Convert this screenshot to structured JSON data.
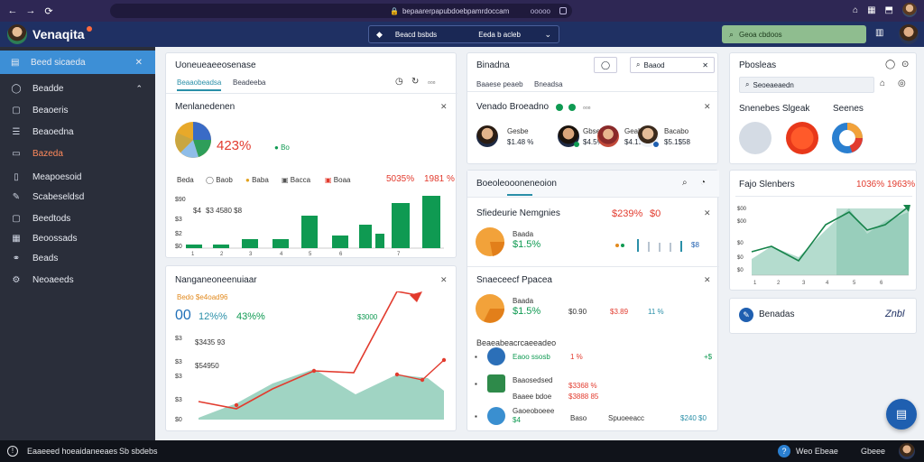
{
  "browser": {
    "nav_icons": [
      "←",
      "→",
      "⟳"
    ],
    "url_text": "bepaarerpapubdoebpamrdoccam",
    "url_extra": "ooooo",
    "right_icons": [
      "⌂",
      "▦",
      "⬒"
    ]
  },
  "app": {
    "brand": "Venaqita",
    "center_select": {
      "label1": "Beacd bsbds",
      "label2": "Eeda b acleb"
    },
    "search_text": "Geoa cbdoos",
    "colors": {
      "appbar": "#1f3063",
      "sidebar": "#2a2e3a",
      "accent": "#3d8fd6",
      "green": "#0f9a52",
      "red": "#e23b2e",
      "teal": "#8fcdb8"
    }
  },
  "sidebar": {
    "active": {
      "label": "Beed sicaeda",
      "icon": "grid-icon"
    },
    "items": [
      {
        "label": "Beadde",
        "icon": "circle-icon"
      },
      {
        "label": "Beaoeris",
        "icon": "doc-icon"
      },
      {
        "label": "Beaoedna",
        "icon": "list-icon"
      },
      {
        "label": "Bazeda",
        "icon": "alert-icon"
      },
      {
        "label": "Meapoesoid",
        "icon": "doc-icon"
      },
      {
        "label": "Scabeseldsd",
        "icon": "pen-icon"
      },
      {
        "label": "Beedtods",
        "icon": "box-icon"
      },
      {
        "label": "Beoossads",
        "icon": "calendar-icon"
      },
      {
        "label": "Beads",
        "icon": "link-icon"
      },
      {
        "label": "Neoaeeds",
        "icon": "settings-icon"
      }
    ]
  },
  "card_overview": {
    "title": "Uoneueaeeosenase",
    "tabs": [
      "Beaaobeadsa",
      "Beadeeba"
    ],
    "sub_title": "Menlanedenen",
    "pie_value": "423%",
    "pie_legend": "Bo",
    "legend": [
      "Beda",
      "Baob",
      "Baba",
      "Bacca",
      "Boaa"
    ],
    "highlight_a": "5035%",
    "highlight_b": "1981 %",
    "bar_labels": [
      "$4",
      "$3 4580 $8"
    ],
    "y_ticks": [
      "$90",
      "$3",
      "$2",
      "$0"
    ],
    "x_ticks": [
      "1",
      "2",
      "3",
      "4",
      "5",
      "6",
      "7"
    ]
  },
  "card_trend": {
    "title": "Nanganeoneenuiaar",
    "subline": "Bedo $e4oad96",
    "val1": "00",
    "val2": "12%%",
    "val3": "43%%",
    "val4": "$3000",
    "label1": "$3435 93",
    "label2": "$54950",
    "y_ticks": [
      "$3",
      "$3",
      "$3",
      "$3",
      "$0"
    ]
  },
  "card_people": {
    "title": "Binadna",
    "tabs": [
      "Baaese peaeb",
      "Bneadsa"
    ],
    "search_text": "Baaod",
    "sub_title": "Venado Broeadno",
    "people": [
      {
        "name": "Gesbe",
        "value": "$1.48 %"
      },
      {
        "name": "Gbseb",
        "value": "$4.5%"
      },
      {
        "name": "Geabsoe",
        "value": "$4.1998%"
      },
      {
        "name": "Bacabo",
        "value": "$5.1$58"
      }
    ]
  },
  "card_stats": {
    "title": "Boeoleoooneneoion",
    "row1": {
      "title": "Sfiedeurie Nemgnies",
      "label": "Baada",
      "value": "$1.5%",
      "h1": "$239%",
      "h2": "$0",
      "spark": "$8"
    },
    "row2": {
      "title": "Snaeceecf Ppacea",
      "label": "Baada",
      "value": "$1.5%",
      "m1": "$0.90",
      "m2": "$3.89",
      "m3": "11 %"
    },
    "list_title": "Beaeabeacrcaeeadeo",
    "list": [
      {
        "title": "Eaoo ssosb",
        "value": "1 %",
        "extra": "+$"
      },
      {
        "title": "Baaosedsed",
        "value": "$3368 %"
      },
      {
        "title": "Baaee bdoe",
        "value": "$3888 85"
      },
      {
        "title": "Gaoeoboeee",
        "m1": "$4",
        "m2": "Baso",
        "m3": "Spuoeeacc",
        "m4": "$240 $0"
      }
    ]
  },
  "card_plans": {
    "title": "Pbosleas",
    "search_text": "Seoeaeaedn",
    "sub1": "Snenebes Slgeak",
    "sub2": "Seenes"
  },
  "card_growth": {
    "title": "Fajo Slenbers",
    "h1": "1036%",
    "h2": "1963%",
    "y_ticks": [
      "$00",
      "$00",
      "$0",
      "$0",
      "$0"
    ],
    "x_ticks": [
      "1",
      "2",
      "3",
      "4",
      "5",
      "6"
    ]
  },
  "card_footer": {
    "label": "Benadas",
    "value": "Znbl"
  },
  "footer": {
    "left1": "Eaaeeed hoeaidaneeaes",
    "left2": "Sb sbdebs",
    "right1": "Weo Ebeae",
    "right2": "Gbeee"
  }
}
